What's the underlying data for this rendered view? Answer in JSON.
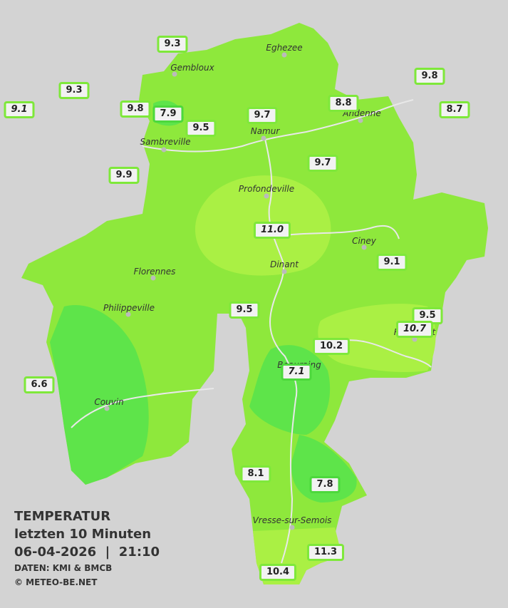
{
  "cities": [
    "Eghezee",
    "Gembloux",
    "Andenne",
    "Namur",
    "Sambreville",
    "Profondeville",
    "Ciney",
    "Dinant",
    "Florennes",
    "Philippeville",
    "Rochefort",
    "Beauraing",
    "Couvin",
    "Vresse-sur-Semois"
  ],
  "stations": [
    "9.3",
    "9.3",
    "9.1",
    "9.8",
    "7.9",
    "9.5",
    "9.7",
    "8.8",
    "9.8",
    "8.7",
    "9.9",
    "9.7",
    "11.0",
    "9.1",
    "9.5",
    "9.5",
    "10.7",
    "10.2",
    "7.1",
    "6.6",
    "8.1",
    "7.8",
    "11.3",
    "10.4"
  ],
  "legend": {
    "title": "TEMPERATUR",
    "subtitle": "letzten 10 Minuten",
    "datetime": "06-04-2026  |  21:10",
    "source": "DATEN: KMI & BMCB",
    "copyright": "© METEO-BE.NET"
  }
}
